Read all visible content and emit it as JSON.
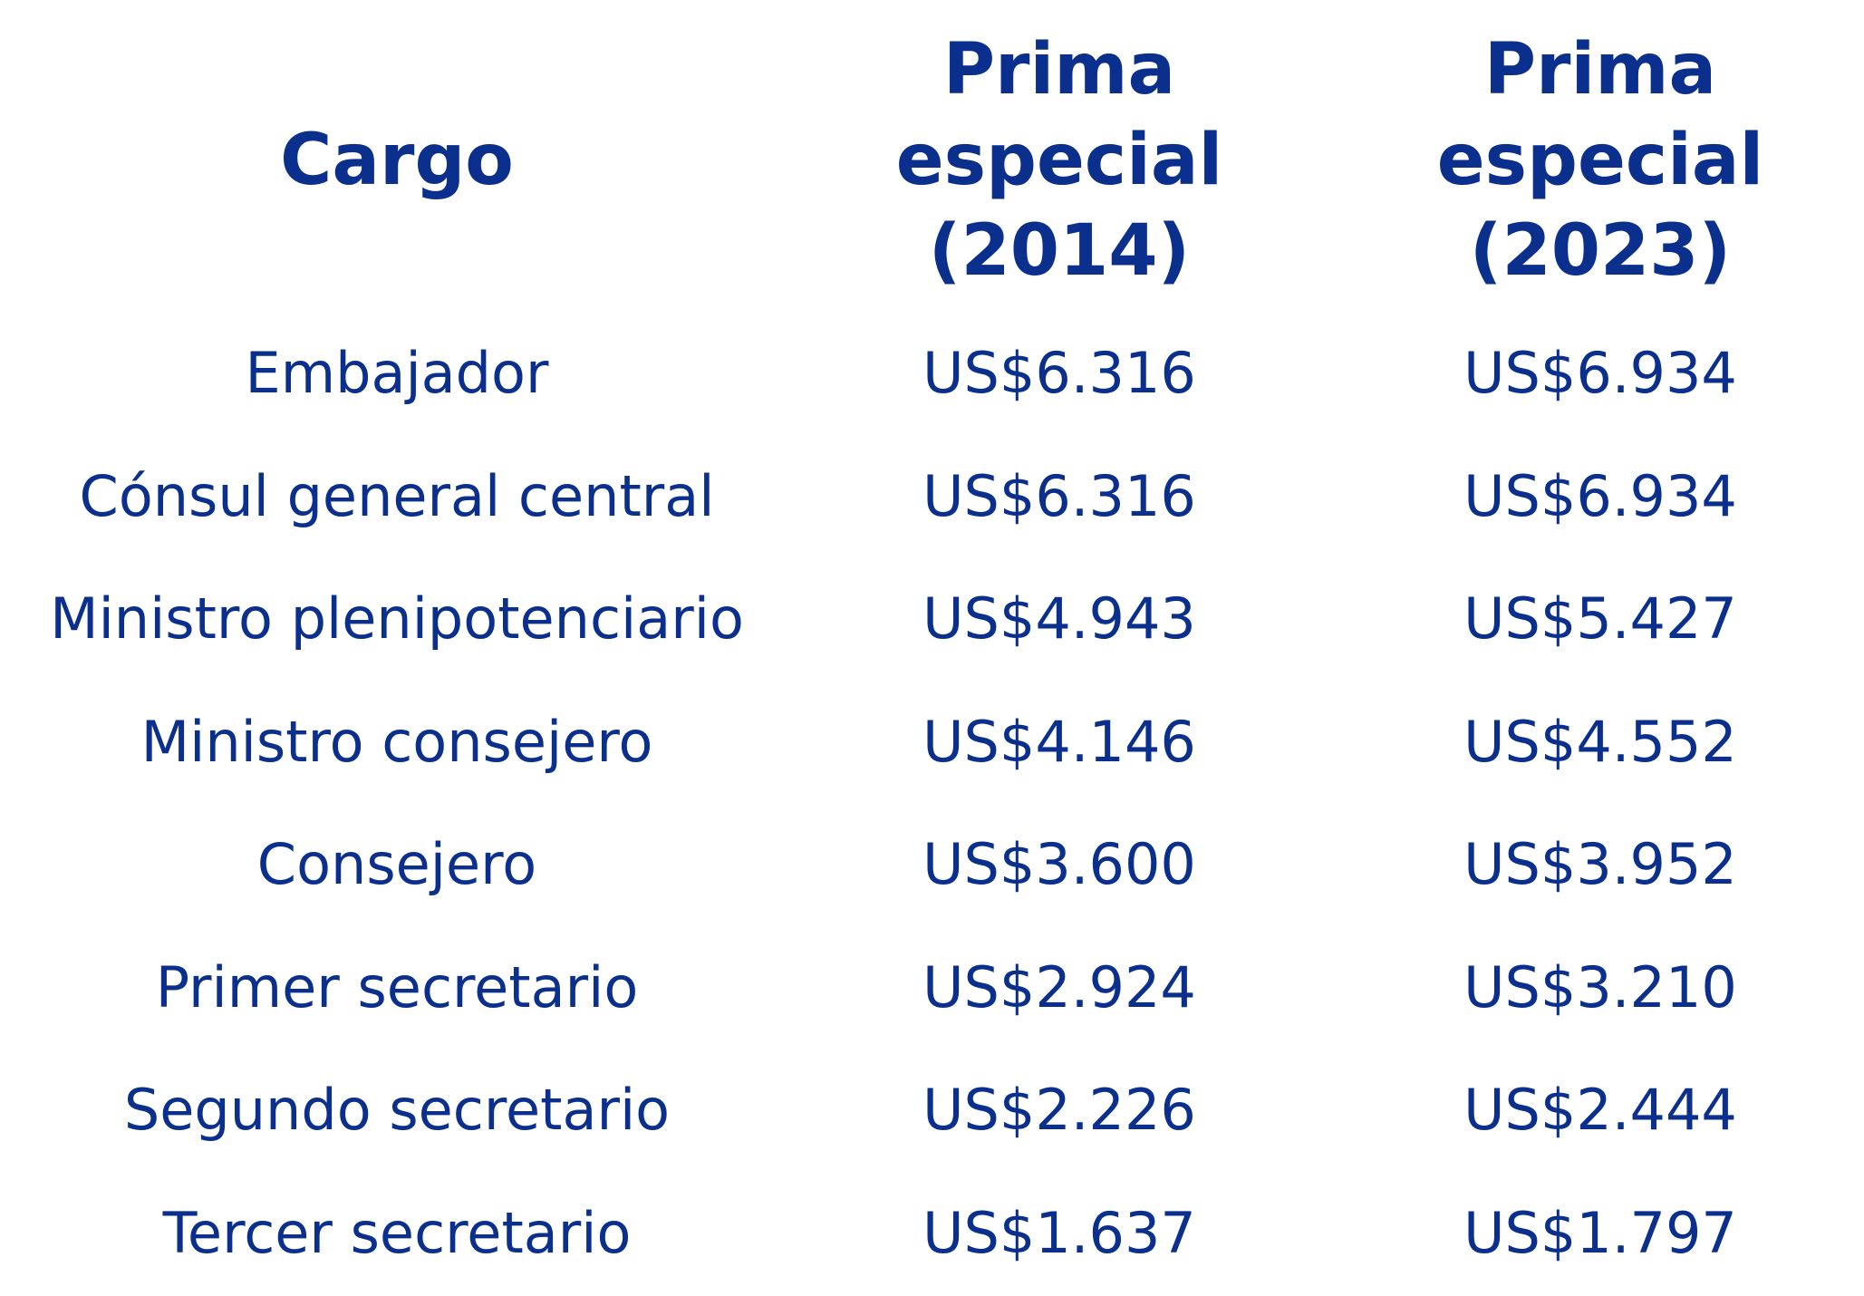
{
  "table": {
    "header": [
      "Cargo",
      "Prima especial (2014)",
      "Prima especial (2023)"
    ],
    "rows": [
      [
        "Embajador",
        "US$6.316",
        "US$6.934"
      ],
      [
        "Cónsul general central",
        "US$6.316",
        "US$6.934"
      ],
      [
        "Ministro plenipotenciario",
        "US$4.943",
        "US$5.427"
      ],
      [
        "Ministro consejero",
        "US$4.146",
        "US$4.552"
      ],
      [
        "Consejero",
        "US$3.600",
        "US$3.952"
      ],
      [
        "Primer secretario",
        "US$2.924",
        "US$3.210"
      ],
      [
        "Segundo secretario",
        "US$2.226",
        "US$2.444"
      ],
      [
        "Tercer secretario",
        "US$1.637",
        "US$1.797"
      ]
    ]
  }
}
